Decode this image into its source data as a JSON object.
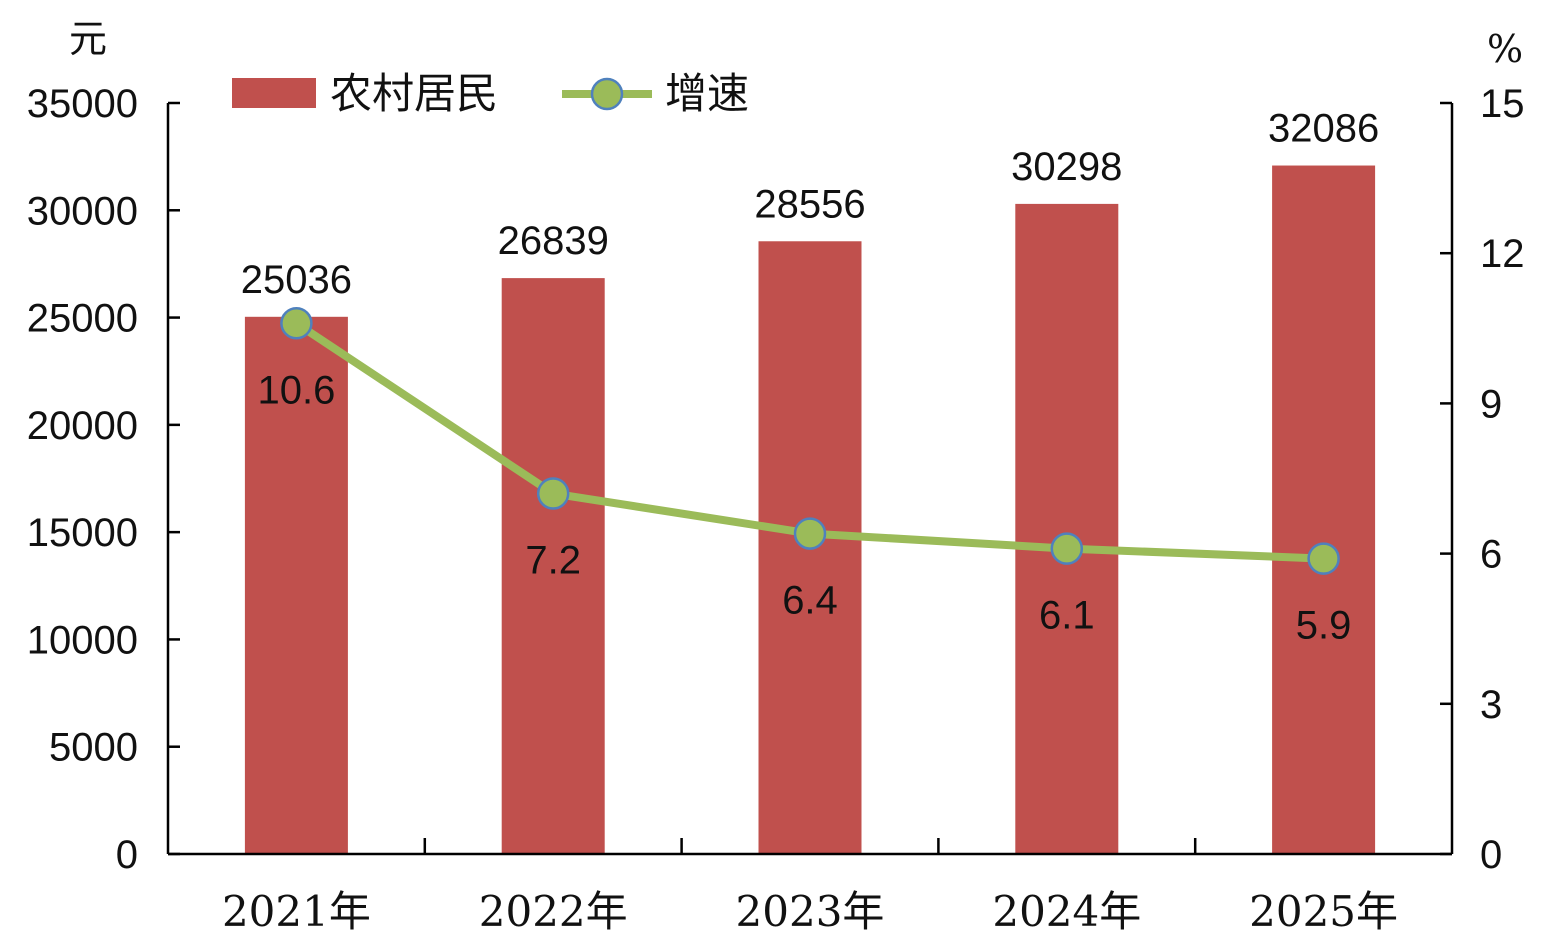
{
  "chart_data": {
    "type": "bar",
    "categories": [
      "2021年",
      "2022年",
      "2023年",
      "2024年",
      "2025年"
    ],
    "series": [
      {
        "name": "农村居民",
        "type": "bar",
        "axis": "left",
        "values": [
          25036,
          26839,
          28556,
          30298,
          32086
        ],
        "color": "#C0504D"
      },
      {
        "name": "增速",
        "type": "line",
        "axis": "right",
        "values": [
          10.6,
          7.2,
          6.4,
          6.1,
          5.9
        ],
        "color": "#9BBB59",
        "marker_color": "#9BBB59",
        "marker_edge_color": "#4F81BD"
      }
    ],
    "y_left": {
      "unit": "元",
      "ylim": [
        0,
        35000
      ],
      "ticks": [
        "0",
        "5000",
        "10000",
        "15000",
        "20000",
        "25000",
        "30000",
        "35000"
      ]
    },
    "y_right": {
      "unit": "%",
      "ylim": [
        0,
        15
      ],
      "ticks": [
        "0",
        "3",
        "6",
        "9",
        "12",
        "15"
      ]
    },
    "grid": false,
    "legend": "top-left"
  }
}
